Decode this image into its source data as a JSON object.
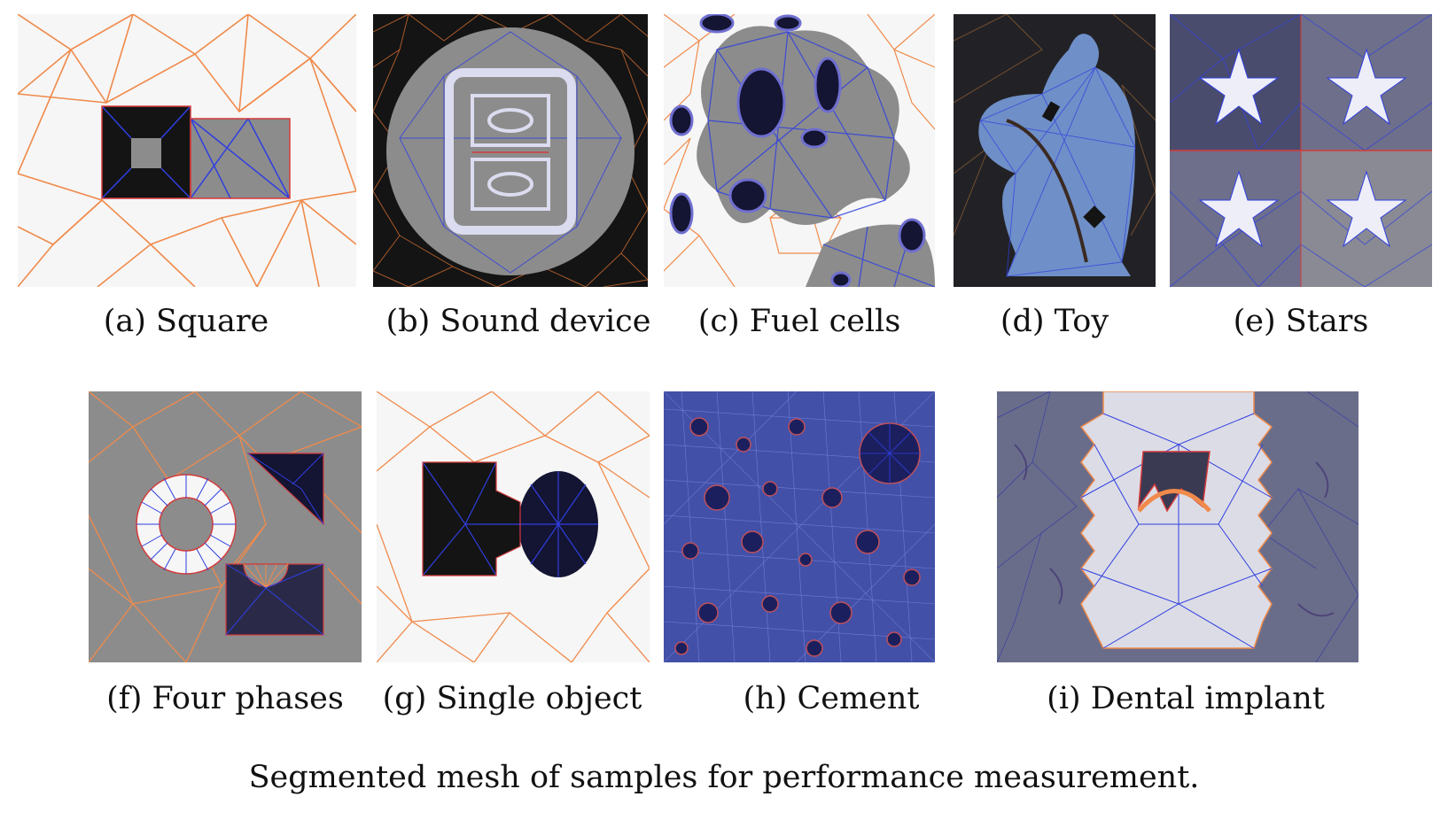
{
  "figure": {
    "caption": "Segmented mesh of samples for performance measurement.",
    "panels": [
      {
        "id": "a",
        "caption": "(a) Square"
      },
      {
        "id": "b",
        "caption": "(b) Sound device"
      },
      {
        "id": "c",
        "caption": "(c) Fuel cells"
      },
      {
        "id": "d",
        "caption": "(d) Toy"
      },
      {
        "id": "e",
        "caption": "(e) Stars"
      },
      {
        "id": "f",
        "caption": "(f) Four phases"
      },
      {
        "id": "g",
        "caption": "(g) Single object"
      },
      {
        "id": "h",
        "caption": "(h) Cement"
      },
      {
        "id": "i",
        "caption": "(i) Dental implant"
      }
    ]
  },
  "colors": {
    "mesh_outer": "#f08a4b",
    "mesh_inner": "#2f3fe0",
    "boundary": "#d43b3b",
    "light_bg": "#f6f6f6",
    "gray_phase": "#8c8c8c",
    "dark_phase": "#141414",
    "blue_phase": "#6f8fc8",
    "star_bg": "#6e6f8a"
  }
}
